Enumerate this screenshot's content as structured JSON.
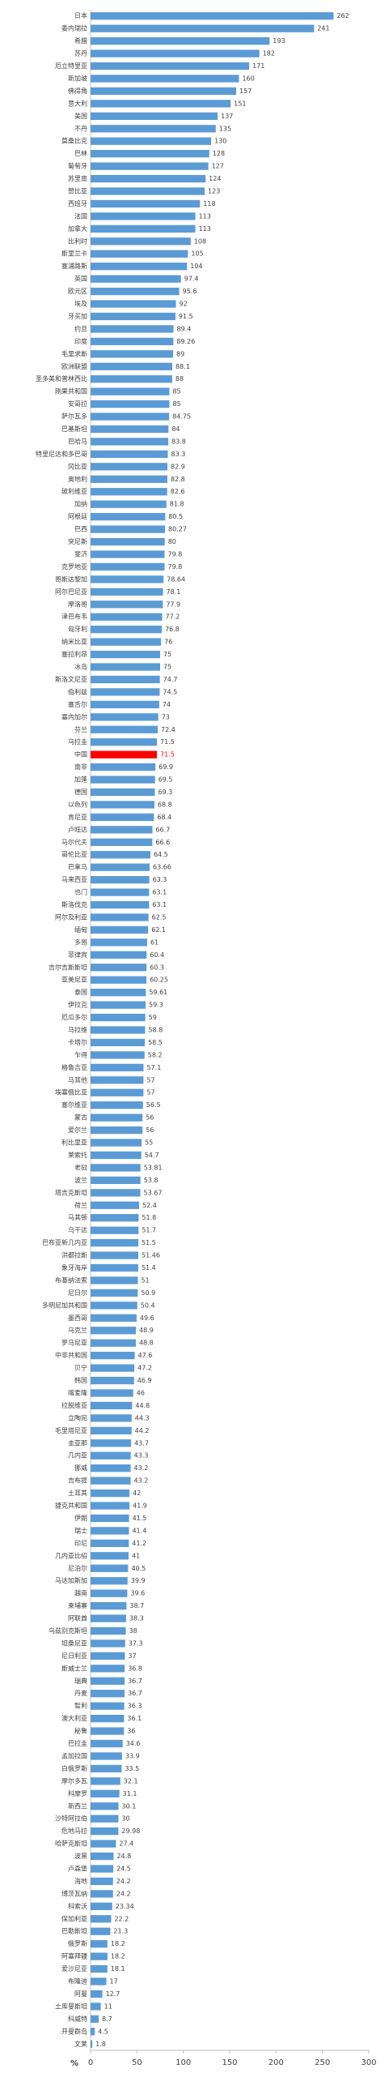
{
  "chart_data": {
    "type": "barh",
    "x_label": "%",
    "categories": [
      "日本",
      "委内瑞拉",
      "希腊",
      "苏丹",
      "厄立特里亚",
      "新加坡",
      "佛得角",
      "意大利",
      "美国",
      "不丹",
      "莫桑比克",
      "巴林",
      "葡萄牙",
      "苏里南",
      "赞比亚",
      "西班牙",
      "法国",
      "加拿大",
      "比利时",
      "斯里兰卡",
      "塞浦路斯",
      "英国",
      "欧元区",
      "埃及",
      "牙买加",
      "约旦",
      "印度",
      "毛里求斯",
      "欧洲联盟",
      "圣多美和普林西比",
      "刚果共和国",
      "安哥拉",
      "萨尔瓦多",
      "巴基斯坦",
      "巴哈马",
      "特里尼达和多巴哥",
      "冈比亚",
      "奥地利",
      "玻利维亚",
      "加纳",
      "阿根廷",
      "巴西",
      "突尼斯",
      "斐济",
      "克罗地亚",
      "哥斯达黎加",
      "阿尔巴尼亚",
      "摩洛哥",
      "津巴布韦",
      "匈牙利",
      "纳米比亚",
      "塞拉利昂",
      "冰岛",
      "斯洛文尼亚",
      "伯利兹",
      "塞舌尔",
      "塞内加尔",
      "芬兰",
      "乌拉圭",
      "中国",
      "南非",
      "加蓬",
      "德国",
      "以色列",
      "肯尼亚",
      "卢旺达",
      "马尔代夫",
      "哥伦比亚",
      "巴拿马",
      "马来西亚",
      "也门",
      "斯洛伐克",
      "阿尔及利亚",
      "缅甸",
      "多哥",
      "菲律宾",
      "吉尔吉斯斯坦",
      "亚美尼亚",
      "泰国",
      "伊拉克",
      "厄瓜多尔",
      "马拉维",
      "卡塔尔",
      "乍得",
      "格鲁吉亚",
      "马耳他",
      "埃塞俄比亚",
      "塞尔维亚",
      "蒙古",
      "爱尔兰",
      "利比里亚",
      "莱索托",
      "老挝",
      "波兰",
      "塔吉克斯坦",
      "荷兰",
      "马其顿",
      "乌干达",
      "巴布亚新几内亚",
      "洪都拉斯",
      "象牙海岸",
      "布基纳法索",
      "尼日尔",
      "多明尼加共和国",
      "墨西哥",
      "乌克兰",
      "罗马尼亚",
      "中非共和国",
      "贝宁",
      "韩国",
      "喀麦隆",
      "拉脱维亚",
      "立陶宛",
      "毛里塔尼亚",
      "圭亚那",
      "几内亚",
      "挪威",
      "吉布提",
      "土耳其",
      "捷克共和国",
      "伊朗",
      "瑞士",
      "印尼",
      "几内亚比绍",
      "尼泊尔",
      "马达加斯加",
      "越南",
      "柬埔寨",
      "阿联酋",
      "乌兹别克斯坦",
      "坦桑尼亚",
      "尼日利亚",
      "斯威士兰",
      "瑞典",
      "丹麦",
      "智利",
      "澳大利亚",
      "秘鲁",
      "巴拉圭",
      "孟加拉国",
      "白俄罗斯",
      "摩尔多瓦",
      "科摩罗",
      "新西兰",
      "沙特阿拉伯",
      "危地马拉",
      "哈萨克斯坦",
      "波黑",
      "卢森堡",
      "海地",
      "博茨瓦纳",
      "科索沃",
      "保加利亚",
      "巴勒斯坦",
      "俄罗斯",
      "阿塞拜疆",
      "爱沙尼亚",
      "布隆迪",
      "阿曼",
      "土库曼斯坦",
      "科威特",
      "开曼群岛",
      "文莱"
    ],
    "values": [
      262,
      241,
      193,
      182,
      171,
      160,
      157,
      151,
      137,
      135,
      130,
      128,
      127,
      124,
      123,
      118,
      113,
      113,
      108,
      105,
      104,
      97.4,
      95.6,
      92,
      91.5,
      89.4,
      89.26,
      89,
      88.1,
      88,
      85,
      85,
      84.75,
      84,
      83.8,
      83.3,
      82.9,
      82.8,
      82.6,
      81.8,
      80.5,
      80.27,
      80,
      79.8,
      79.8,
      78.64,
      78.1,
      77.9,
      77.2,
      76.8,
      76,
      75,
      75,
      74.7,
      74.5,
      74,
      73,
      72.4,
      71.5,
      71.5,
      69.9,
      69.5,
      69.3,
      68.8,
      68.4,
      66.7,
      66.6,
      64.5,
      63.66,
      63.3,
      63.1,
      63.1,
      62.5,
      62.1,
      61,
      60.4,
      60.3,
      60.25,
      59.61,
      59.3,
      59,
      58.8,
      58.5,
      58.2,
      57.1,
      57,
      57,
      56.5,
      56,
      56,
      55,
      54.7,
      53.81,
      53.8,
      53.67,
      52.4,
      51.8,
      51.7,
      51.5,
      51.46,
      51.4,
      51,
      50.9,
      50.4,
      49.6,
      48.9,
      48.8,
      47.6,
      47.2,
      46.9,
      46,
      44.8,
      44.3,
      44.2,
      43.7,
      43.3,
      43.2,
      43.2,
      42,
      41.9,
      41.5,
      41.4,
      41.2,
      41,
      40.5,
      39.9,
      39.6,
      38.7,
      38.3,
      38,
      37.3,
      37,
      36.8,
      36.7,
      36.7,
      36.3,
      36.1,
      36,
      34.6,
      33.9,
      33.5,
      32.1,
      31.1,
      30.1,
      30,
      29.98,
      27.4,
      24.8,
      24.5,
      24.2,
      24.2,
      23.34,
      22.2,
      21.3,
      18.2,
      18.2,
      18.1,
      17,
      12.7,
      11,
      8.7,
      4.5,
      1.8
    ],
    "color": "#5b9bd5",
    "highlight_category": "中国",
    "highlight_color": "#ff0000",
    "xlim": [
      0,
      300
    ],
    "xticks": [
      0,
      50,
      100,
      150,
      200,
      250,
      300
    ],
    "grid": false
  }
}
